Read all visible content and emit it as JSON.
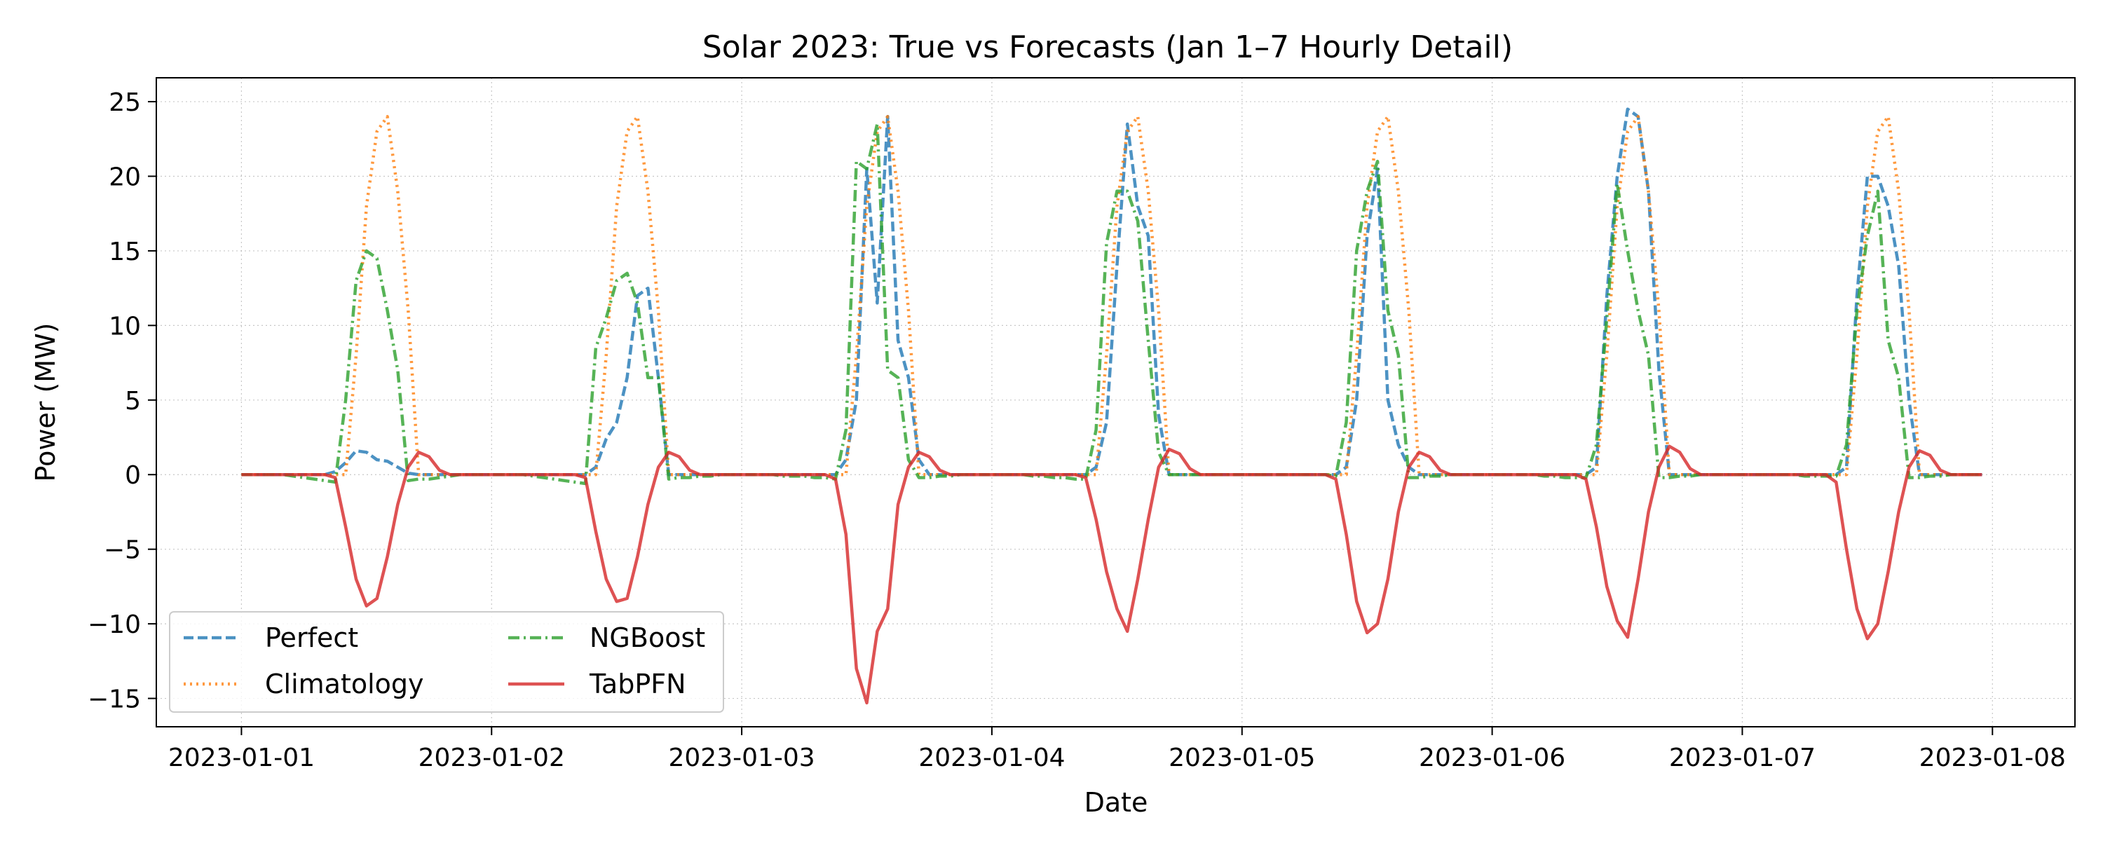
{
  "chart_data": {
    "type": "line",
    "title": "Solar 2023: True vs Forecasts (Jan 1–7 Hourly Detail)",
    "xlabel": "Date",
    "ylabel": "Power (MW)",
    "xlim": [
      "2022-12-31T15:50",
      "2023-01-08T07:55"
    ],
    "ylim": [
      -16.9,
      26.6
    ],
    "x_ticks": [
      "2023-01-01",
      "2023-01-02",
      "2023-01-03",
      "2023-01-04",
      "2023-01-05",
      "2023-01-06",
      "2023-01-07",
      "2023-01-08"
    ],
    "y_ticks": [
      -15,
      -10,
      -5,
      0,
      5,
      10,
      15,
      20,
      25
    ],
    "y_tick_labels": [
      "−15",
      "−10",
      "−5",
      "0",
      "5",
      "10",
      "15",
      "20",
      "25"
    ],
    "grid": true,
    "legend_position": "lower-left",
    "x_start": "2023-01-01T00:00",
    "x_step_hours": 1,
    "series": [
      {
        "name": "Perfect",
        "color": "#1f77b4",
        "dash": "dashed",
        "days": [
          [
            0,
            0,
            0,
            0,
            0,
            0,
            0,
            0,
            0,
            0.2,
            0.8,
            1.6,
            1.5,
            1.0,
            0.9,
            0.5,
            0.1,
            0,
            0,
            0,
            0,
            0,
            0,
            0
          ],
          [
            0,
            0,
            0,
            0,
            0,
            0,
            0,
            0,
            0,
            0,
            0.5,
            2.4,
            3.5,
            6.5,
            12.0,
            12.5,
            6.5,
            0,
            0,
            0,
            0,
            0,
            0,
            0
          ],
          [
            0,
            0,
            0,
            0,
            0,
            0,
            0,
            0,
            0,
            0,
            1.0,
            5.0,
            20.5,
            11.5,
            24.0,
            9.0,
            6.5,
            1.0,
            0,
            0,
            0,
            0,
            0,
            0
          ],
          [
            0,
            0,
            0,
            0,
            0,
            0,
            0,
            0,
            0,
            0,
            0.5,
            3.5,
            14.0,
            23.5,
            18.0,
            16.0,
            4.0,
            0,
            0,
            0,
            0,
            0,
            0,
            0
          ],
          [
            0,
            0,
            0,
            0,
            0,
            0,
            0,
            0,
            0,
            0,
            0.5,
            5.0,
            16.0,
            20.5,
            5.0,
            2.0,
            0.5,
            0,
            0,
            0,
            0,
            0,
            0,
            0
          ],
          [
            0,
            0,
            0,
            0,
            0,
            0,
            0,
            0,
            0,
            0,
            0.5,
            12.0,
            20.0,
            24.5,
            24.0,
            19.0,
            7.0,
            0,
            0,
            0,
            0,
            0,
            0,
            0
          ],
          [
            0,
            0,
            0,
            0,
            0,
            0,
            0,
            0,
            0,
            0,
            0.5,
            12.0,
            20.0,
            20.0,
            18.0,
            14.0,
            5.0,
            0,
            0,
            0,
            0,
            0,
            0,
            0
          ]
        ]
      },
      {
        "name": "Climatology",
        "color": "#ff7f0e",
        "dash": "dotted",
        "days": [
          [
            0,
            0,
            0,
            0,
            0,
            0,
            0,
            0,
            0,
            0,
            0,
            8,
            18,
            23,
            24,
            19,
            11,
            0,
            0,
            0,
            0,
            0,
            0,
            0
          ],
          [
            0,
            0,
            0,
            0,
            0,
            0,
            0,
            0,
            0,
            0,
            0,
            8,
            18,
            23,
            24,
            19,
            11,
            0,
            0,
            0,
            0,
            0,
            0,
            0
          ],
          [
            0,
            0,
            0,
            0,
            0,
            0,
            0,
            0,
            0,
            0,
            0,
            8,
            18,
            23,
            24,
            19,
            11,
            0,
            0,
            0,
            0,
            0,
            0,
            0
          ],
          [
            0,
            0,
            0,
            0,
            0,
            0,
            0,
            0,
            0,
            0,
            0,
            8,
            18,
            23,
            24,
            19,
            11,
            0,
            0,
            0,
            0,
            0,
            0,
            0
          ],
          [
            0,
            0,
            0,
            0,
            0,
            0,
            0,
            0,
            0,
            0,
            0,
            8,
            18,
            23,
            24,
            19,
            11,
            0,
            0,
            0,
            0,
            0,
            0,
            0
          ],
          [
            0,
            0,
            0,
            0,
            0,
            0,
            0,
            0,
            0,
            0,
            0,
            8,
            18,
            23,
            24,
            19,
            11,
            0,
            0,
            0,
            0,
            0,
            0,
            0
          ],
          [
            0,
            0,
            0,
            0,
            0,
            0,
            0,
            0,
            0,
            0,
            0,
            8,
            18,
            23,
            24,
            19,
            11,
            0,
            0,
            0,
            0,
            0,
            0,
            0
          ]
        ]
      },
      {
        "name": "NGBoost",
        "color": "#2ca02c",
        "dash": "dashdot",
        "days": [
          [
            0,
            0,
            0,
            0,
            0,
            -0.1,
            -0.2,
            -0.3,
            -0.4,
            -0.5,
            5.0,
            13.0,
            15.0,
            14.5,
            11.0,
            7.0,
            -0.4,
            -0.3,
            -0.3,
            -0.2,
            -0.1,
            0,
            0,
            0
          ],
          [
            0,
            0,
            0,
            0,
            -0.1,
            -0.2,
            -0.3,
            -0.4,
            -0.5,
            -0.6,
            8.5,
            10.5,
            13.0,
            13.5,
            11.5,
            6.5,
            6.5,
            -0.3,
            -0.2,
            -0.2,
            -0.1,
            -0.1,
            0,
            0
          ],
          [
            0,
            0,
            0,
            0,
            -0.1,
            -0.1,
            -0.1,
            -0.2,
            -0.2,
            -0.3,
            3.0,
            21.0,
            20.5,
            23.5,
            7.0,
            6.5,
            1.0,
            -0.2,
            -0.2,
            -0.1,
            -0.1,
            0,
            0,
            0
          ],
          [
            0,
            0,
            0,
            0,
            -0.1,
            -0.1,
            -0.2,
            -0.2,
            -0.3,
            -0.3,
            3.0,
            15.5,
            19.0,
            19.0,
            17.0,
            9.0,
            1.5,
            0,
            0,
            0,
            0,
            0,
            0,
            0
          ],
          [
            0,
            0,
            0,
            0,
            0,
            0,
            0,
            0,
            0,
            -0.1,
            3.5,
            15.0,
            19.0,
            21.0,
            11.0,
            8.0,
            -0.2,
            -0.2,
            -0.1,
            -0.1,
            0,
            0,
            0,
            0
          ],
          [
            0,
            0,
            0,
            0,
            0,
            -0.1,
            -0.1,
            -0.2,
            -0.2,
            -0.2,
            2.0,
            10.5,
            19.5,
            15.0,
            11.0,
            8.0,
            -0.2,
            -0.2,
            -0.1,
            -0.1,
            0,
            0,
            0,
            0
          ],
          [
            0,
            0,
            0,
            0,
            0,
            0,
            -0.1,
            -0.1,
            -0.1,
            -0.1,
            2.0,
            11.0,
            16.0,
            19.0,
            9.0,
            6.5,
            -0.2,
            -0.2,
            -0.1,
            -0.1,
            0,
            0,
            0,
            0
          ]
        ]
      },
      {
        "name": "TabPFN",
        "color": "#d62728",
        "dash": "solid",
        "days": [
          [
            0,
            0,
            0,
            0,
            0,
            0,
            0,
            0,
            0,
            -0.2,
            -3.5,
            -7.0,
            -8.8,
            -8.3,
            -5.5,
            -2.0,
            0.5,
            1.5,
            1.2,
            0.3,
            0,
            0,
            0,
            0
          ],
          [
            0,
            0,
            0,
            0,
            0,
            0,
            0,
            0,
            0,
            -0.2,
            -3.8,
            -7.0,
            -8.5,
            -8.3,
            -5.5,
            -2.0,
            0.5,
            1.5,
            1.2,
            0.3,
            0,
            0,
            0,
            0
          ],
          [
            0,
            0,
            0,
            0,
            0,
            0,
            0,
            0,
            0,
            -0.3,
            -4.0,
            -13.0,
            -15.3,
            -10.5,
            -9.0,
            -2.0,
            0.5,
            1.5,
            1.2,
            0.3,
            0,
            0,
            0,
            0
          ],
          [
            0,
            0,
            0,
            0,
            0,
            0,
            0,
            0,
            0,
            -0.2,
            -3.0,
            -6.5,
            -9.0,
            -10.5,
            -7.0,
            -3.0,
            0.5,
            1.7,
            1.4,
            0.4,
            0,
            0,
            0,
            0
          ],
          [
            0,
            0,
            0,
            0,
            0,
            0,
            0,
            0,
            0,
            -0.3,
            -4.0,
            -8.5,
            -10.6,
            -10.0,
            -7.0,
            -2.5,
            0.5,
            1.5,
            1.2,
            0.3,
            0,
            0,
            0,
            0
          ],
          [
            0,
            0,
            0,
            0,
            0,
            0,
            0,
            0,
            0,
            -0.3,
            -3.5,
            -7.5,
            -9.8,
            -10.9,
            -7.0,
            -2.5,
            0.5,
            1.9,
            1.5,
            0.4,
            0,
            0,
            0,
            0
          ],
          [
            0,
            0,
            0,
            0,
            0,
            0,
            0,
            0,
            0,
            -0.5,
            -5.0,
            -9.0,
            -11.0,
            -10.0,
            -6.5,
            -2.5,
            0.5,
            1.6,
            1.3,
            0.3,
            0,
            0,
            0,
            0
          ]
        ]
      }
    ]
  }
}
